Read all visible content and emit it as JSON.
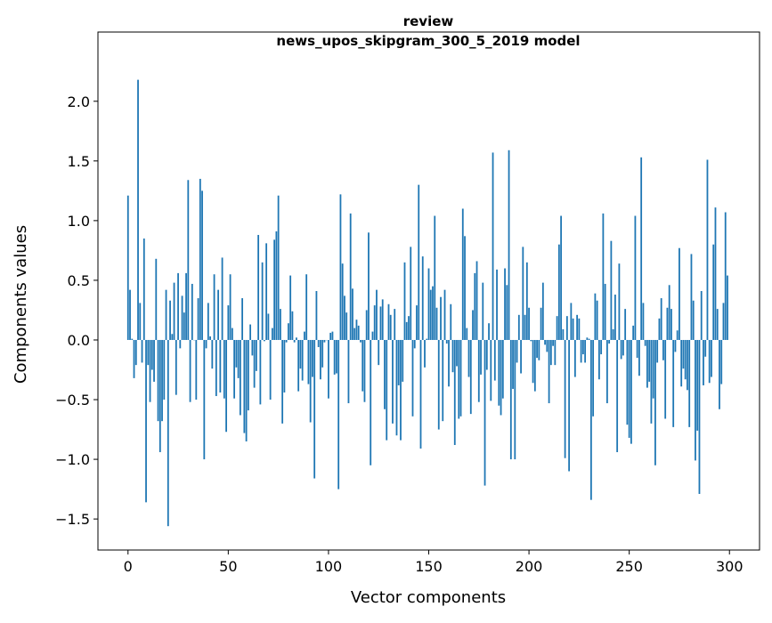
{
  "chart_data": {
    "type": "bar",
    "title": "review",
    "subtitle": "news_upos_skipgram_300_5_2019 model",
    "xlabel": "Vector components",
    "ylabel": "Components values",
    "xlim": [
      -15,
      315
    ],
    "ylim": [
      -1.76,
      2.58
    ],
    "xticks": [
      0,
      50,
      100,
      150,
      200,
      250,
      300
    ],
    "yticks": [
      -1.5,
      -1.0,
      -0.5,
      0.0,
      0.5,
      1.0,
      1.5,
      2.0
    ],
    "ytick_labels": [
      "−1.5",
      "−1.0",
      "−0.5",
      "0.0",
      "0.5",
      "1.0",
      "1.5",
      "2.0"
    ],
    "grid": false,
    "bar_color": "#1f77b4",
    "values": [
      1.21,
      0.42,
      0.01,
      -0.32,
      -0.21,
      2.18,
      0.31,
      -0.19,
      0.85,
      -1.36,
      -0.21,
      -0.52,
      -0.25,
      -0.35,
      0.68,
      -0.68,
      -0.94,
      -0.68,
      -0.5,
      0.42,
      -1.56,
      0.33,
      0.05,
      0.48,
      -0.46,
      0.56,
      -0.07,
      0.37,
      0.23,
      0.56,
      1.34,
      -0.52,
      0.47,
      0.0,
      -0.5,
      0.35,
      1.35,
      1.25,
      -1.0,
      -0.07,
      0.31,
      0.03,
      -0.24,
      0.55,
      -0.47,
      0.42,
      -0.44,
      0.69,
      -0.49,
      -0.77,
      0.29,
      0.55,
      0.1,
      -0.49,
      -0.23,
      -0.32,
      -0.63,
      0.35,
      -0.78,
      -0.85,
      -0.59,
      0.13,
      -0.13,
      -0.4,
      -0.26,
      0.88,
      -0.54,
      0.65,
      -0.01,
      0.81,
      0.22,
      -0.5,
      0.1,
      0.84,
      0.91,
      1.21,
      0.26,
      -0.7,
      -0.44,
      -0.02,
      0.14,
      0.54,
      0.24,
      -0.02,
      0.02,
      -0.43,
      -0.24,
      -0.34,
      0.07,
      0.55,
      -0.37,
      -0.69,
      -0.31,
      -1.16,
      0.41,
      -0.06,
      -0.33,
      -0.23,
      -0.02,
      0.0,
      -0.49,
      0.06,
      0.07,
      -0.29,
      -0.28,
      -1.25,
      1.22,
      0.64,
      0.37,
      0.23,
      -0.53,
      1.06,
      0.43,
      0.1,
      0.17,
      0.12,
      -0.02,
      -0.43,
      -0.52,
      0.25,
      0.9,
      -1.05,
      0.07,
      0.29,
      0.42,
      -0.21,
      0.28,
      0.34,
      -0.58,
      -0.84,
      0.3,
      0.21,
      -0.7,
      0.26,
      -0.8,
      -0.38,
      -0.84,
      -0.35,
      0.65,
      0.15,
      0.2,
      0.78,
      -0.64,
      -0.07,
      0.29,
      1.3,
      -0.91,
      0.7,
      -0.23,
      0.01,
      0.6,
      0.42,
      0.45,
      1.04,
      0.27,
      -0.75,
      0.36,
      -0.68,
      0.42,
      -0.03,
      -0.39,
      0.3,
      -0.27,
      -0.88,
      -0.22,
      -0.66,
      -0.64,
      1.1,
      0.87,
      0.1,
      -0.31,
      -0.62,
      0.25,
      0.56,
      0.66,
      -0.52,
      -0.29,
      0.48,
      -1.22,
      -0.25,
      0.14,
      -0.51,
      1.57,
      -0.34,
      0.59,
      -0.55,
      -0.63,
      -0.49,
      0.6,
      0.46,
      1.59,
      -1.0,
      -0.41,
      -1.0,
      -0.19,
      0.21,
      -0.28,
      0.78,
      0.21,
      0.65,
      0.27,
      -0.01,
      -0.36,
      -0.43,
      -0.15,
      -0.17,
      0.27,
      0.48,
      -0.04,
      -0.1,
      -0.53,
      -0.21,
      -0.05,
      -0.21,
      0.2,
      0.8,
      1.04,
      0.09,
      -0.99,
      0.2,
      -1.1,
      0.31,
      0.18,
      -0.31,
      0.21,
      0.18,
      -0.19,
      -0.12,
      -0.19,
      0.02,
      0.01,
      -1.34,
      -0.64,
      0.39,
      0.33,
      -0.33,
      -0.12,
      1.06,
      0.47,
      -0.53,
      -0.03,
      0.83,
      0.09,
      0.38,
      -0.94,
      0.64,
      -0.16,
      -0.13,
      0.26,
      -0.71,
      -0.82,
      -0.87,
      0.12,
      1.04,
      -0.15,
      -0.3,
      1.53,
      0.31,
      -0.05,
      -0.4,
      -0.35,
      -0.7,
      -0.49,
      -1.05,
      -0.19,
      0.18,
      0.35,
      -0.17,
      -0.66,
      0.27,
      0.46,
      0.26,
      -0.73,
      -0.1,
      0.08,
      0.77,
      -0.39,
      -0.24,
      -0.33,
      -0.42,
      -0.73,
      0.72,
      0.33,
      -1.01,
      -0.76,
      -1.29,
      0.41,
      -0.38,
      -0.14,
      1.51,
      -0.36,
      -0.31,
      0.8,
      1.11,
      0.26,
      -0.58,
      -0.37,
      0.31,
      1.07,
      0.54
    ]
  }
}
